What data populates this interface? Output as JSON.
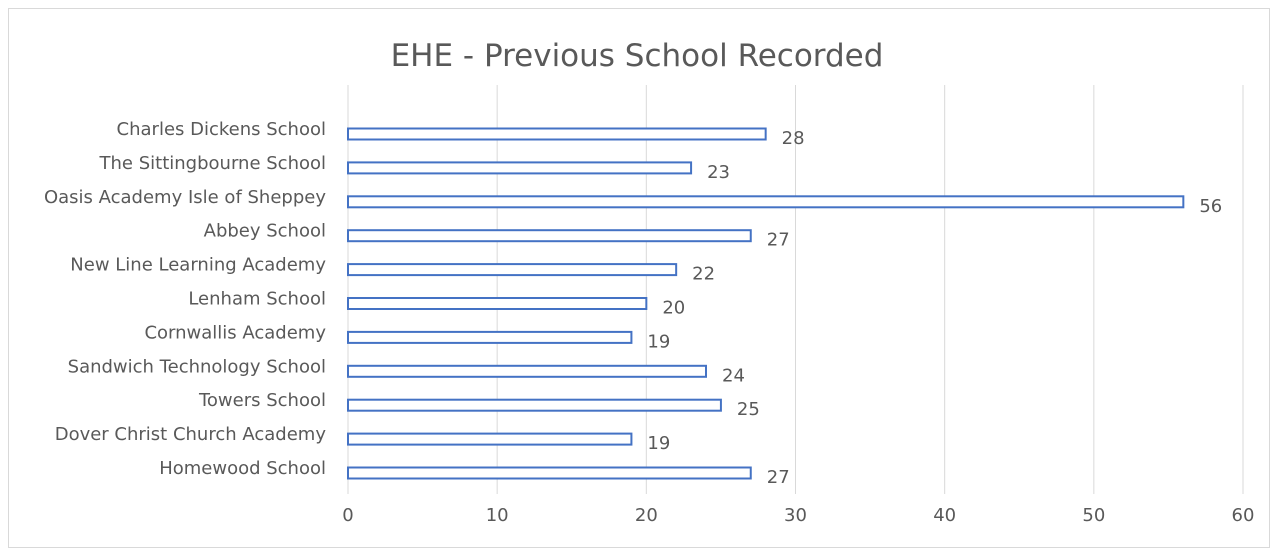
{
  "chart_data": {
    "type": "bar",
    "orientation": "horizontal",
    "title": "EHE - Previous School Recorded",
    "categories": [
      "Charles Dickens School",
      "The Sittingbourne School",
      "Oasis Academy Isle of Sheppey",
      "Abbey School",
      "New Line Learning Academy",
      "Lenham School",
      "Cornwallis Academy",
      "Sandwich Technology School",
      "Towers School",
      "Dover Christ Church Academy",
      "Homewood School"
    ],
    "values": [
      28,
      23,
      56,
      27,
      22,
      20,
      19,
      24,
      25,
      19,
      27
    ],
    "xlim": [
      0,
      60
    ],
    "xticks": [
      0,
      10,
      20,
      30,
      40,
      50,
      60
    ],
    "grid": true,
    "legend": "none",
    "colors": {
      "bar_fill": "#ffffff",
      "bar_stroke": "#4472c4",
      "grid": "#d9d9d9",
      "text": "#595959"
    }
  }
}
